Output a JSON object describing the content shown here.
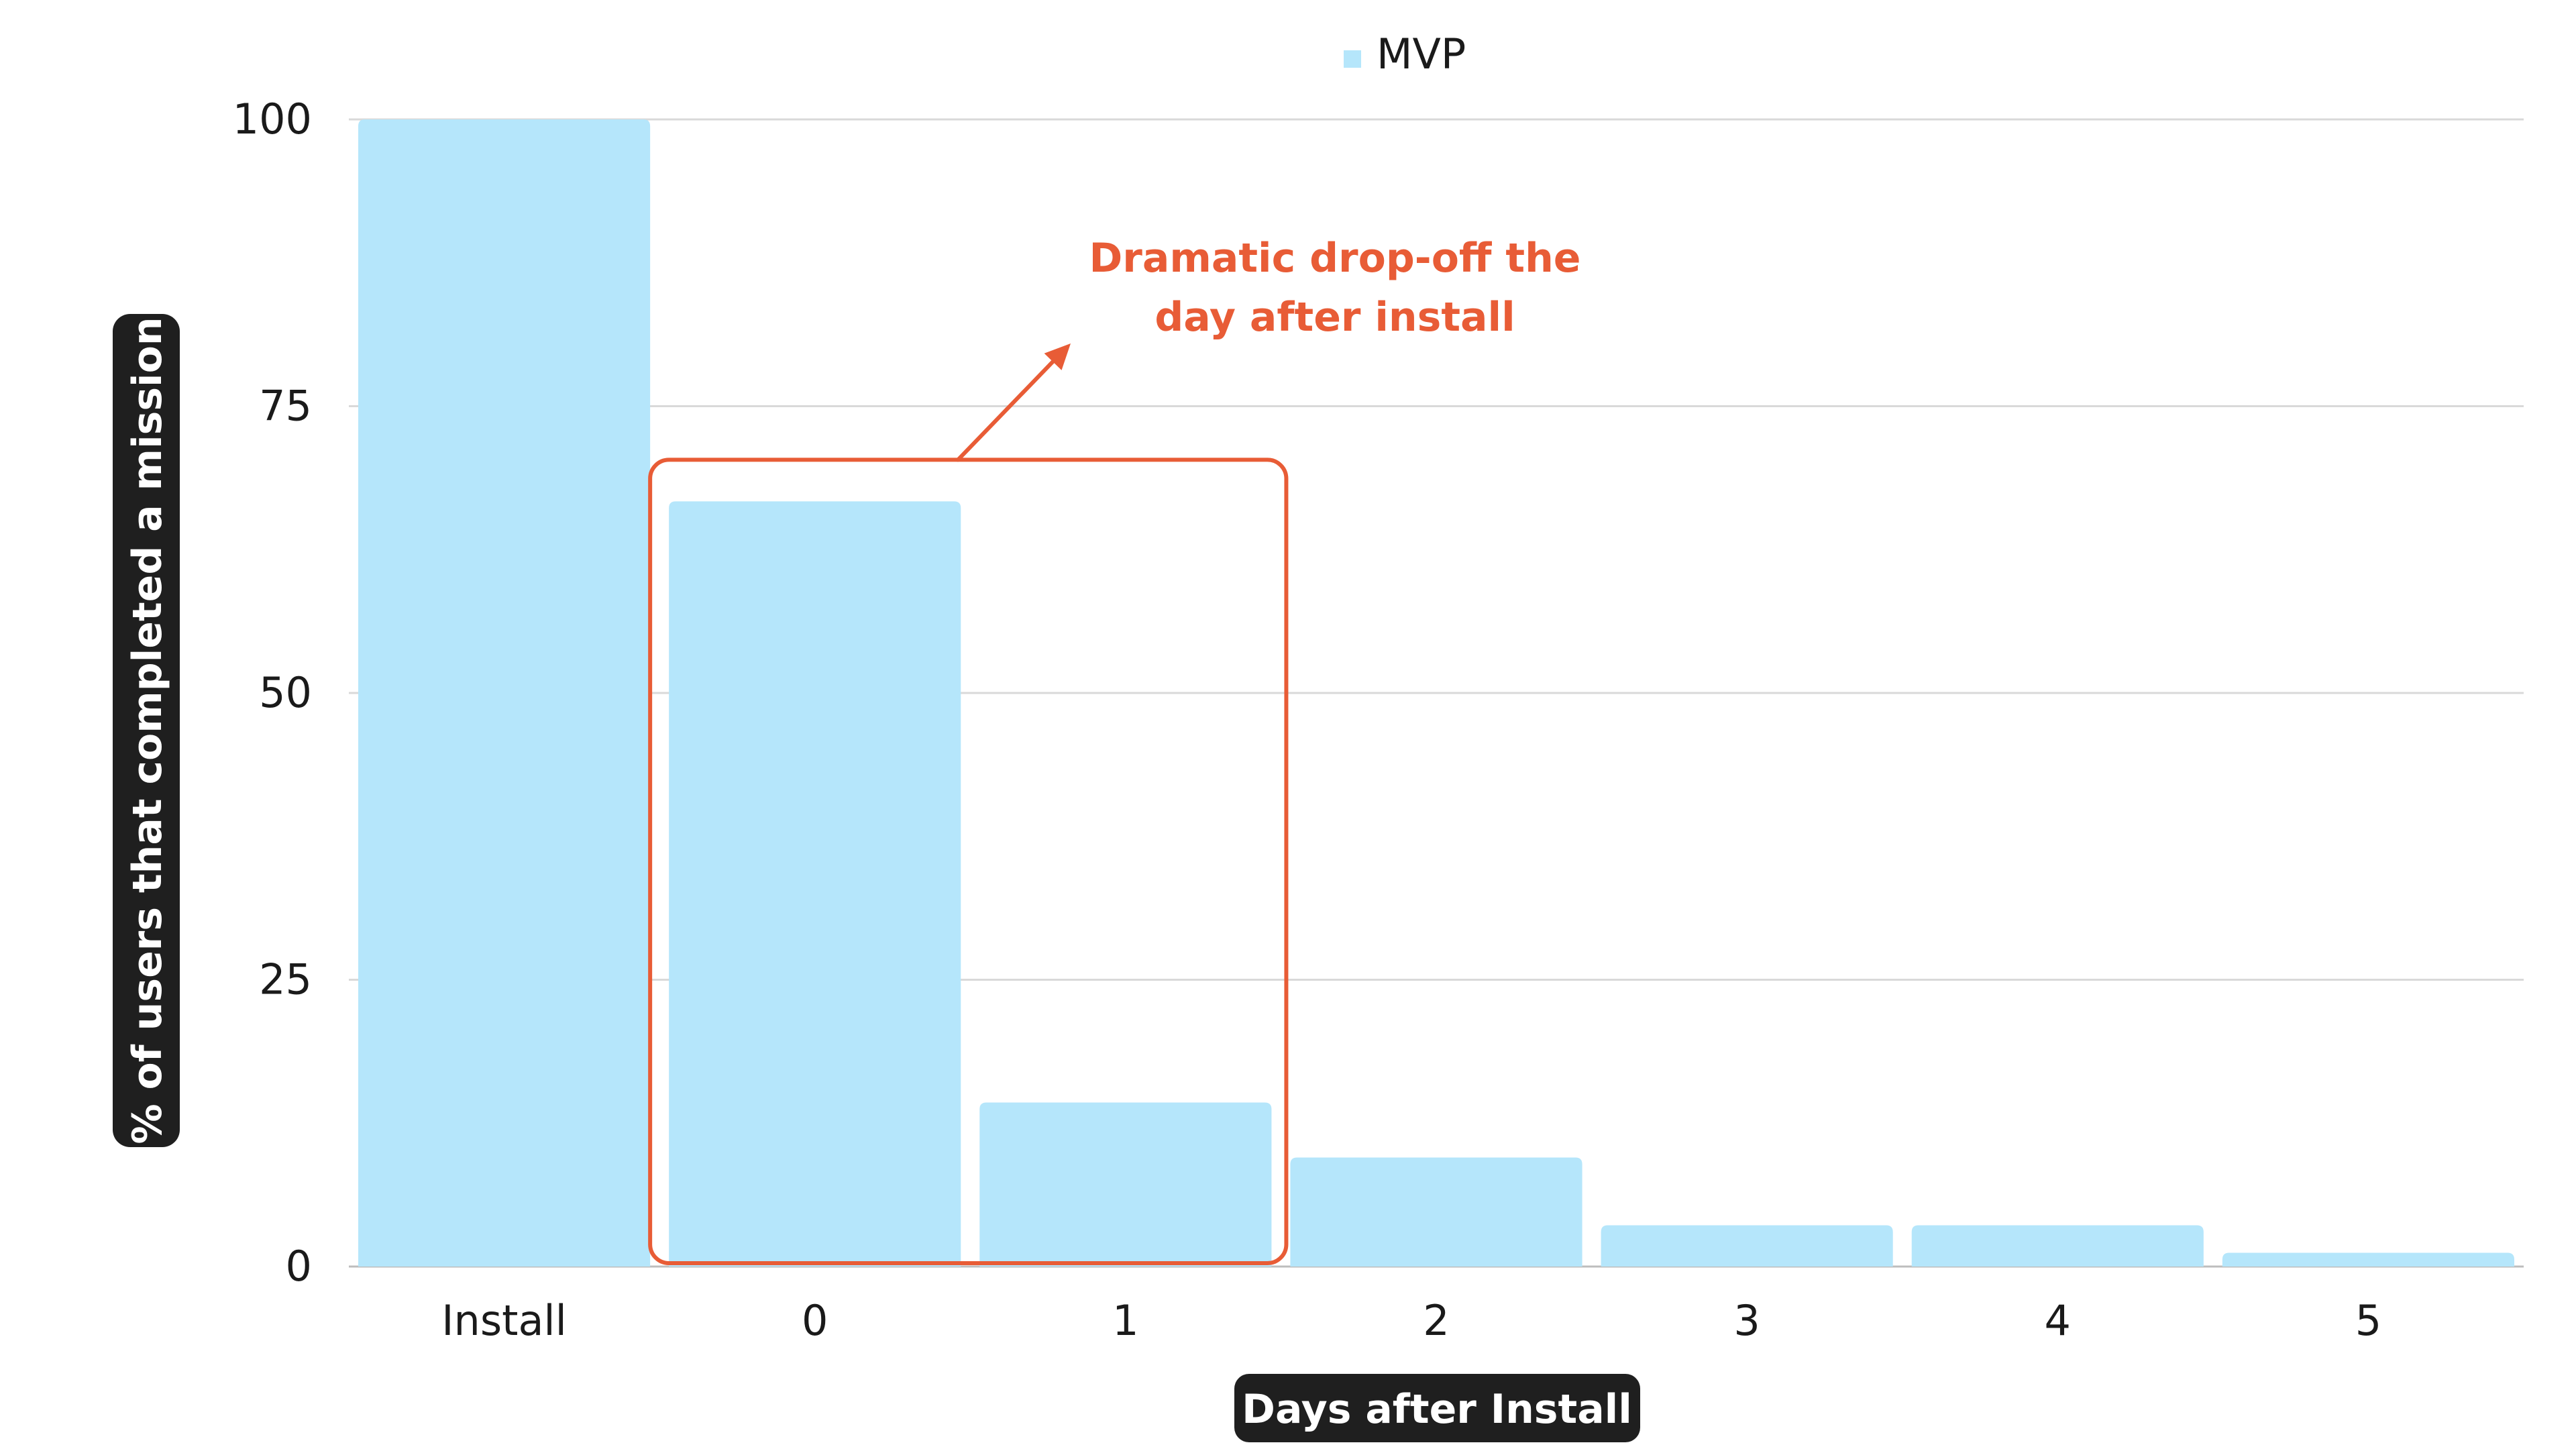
{
  "chart_data": {
    "type": "bar",
    "categories": [
      "Install",
      "0",
      "1",
      "2",
      "3",
      "4",
      "5"
    ],
    "series": [
      {
        "name": "MVP",
        "values": [
          100,
          66.7,
          14.3,
          9.5,
          3.6,
          3.6,
          1.2
        ]
      }
    ],
    "xlabel": "Days after Install",
    "ylabel": "% of users that completed a mission",
    "ylim": [
      0,
      100
    ],
    "yticks": [
      0,
      25,
      50,
      75,
      100
    ],
    "grid": true,
    "legend": "top-center",
    "annotation": {
      "text_lines": [
        "Dramatic drop-off the",
        "day after install"
      ],
      "highlight_categories": [
        "0",
        "1"
      ]
    },
    "colors": {
      "bar": "#b5e6fb",
      "annotation": "#e85c36",
      "grid": "#d9d9d9",
      "axis_label_bg": "#1f1f1f"
    }
  }
}
